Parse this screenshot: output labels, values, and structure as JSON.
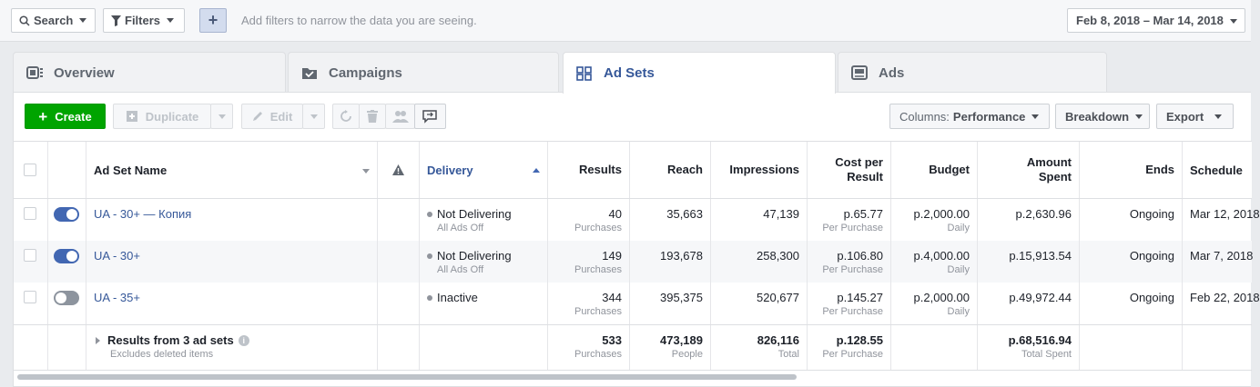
{
  "filterbar": {
    "search_label": "Search",
    "filters_label": "Filters",
    "add_label": "+",
    "hint": "Add filters to narrow the data you are seeing.",
    "date_range": "Feb 8, 2018 – Mar 14, 2018"
  },
  "tabs": [
    {
      "label": "Overview",
      "icon": "overview-icon"
    },
    {
      "label": "Campaigns",
      "icon": "folder-icon"
    },
    {
      "label": "Ad Sets",
      "icon": "grid-icon"
    },
    {
      "label": "Ads",
      "icon": "ad-icon"
    }
  ],
  "toolbar": {
    "create_label": "Create",
    "duplicate_label": "Duplicate",
    "edit_label": "Edit",
    "columns_label": "Columns:",
    "columns_value": "Performance",
    "breakdown_label": "Breakdown",
    "export_label": "Export"
  },
  "columns": {
    "name": "Ad Set Name",
    "delivery": "Delivery",
    "results": "Results",
    "reach": "Reach",
    "impressions": "Impressions",
    "cost_line1": "Cost per",
    "cost_line2": "Result",
    "budget": "Budget",
    "spent_line1": "Amount",
    "spent_line2": "Spent",
    "ends": "Ends",
    "schedule": "Schedule"
  },
  "rows": [
    {
      "on": true,
      "name": "UA - 30+ — Копия",
      "delivery": "Not Delivering",
      "delivery_sub": "All Ads Off",
      "results": "40",
      "results_sub": "Purchases",
      "reach": "35,663",
      "impressions": "47,139",
      "cost": "р.65.77",
      "cost_sub": "Per Purchase",
      "budget": "р.2,000.00",
      "budget_sub": "Daily",
      "spent": "р.2,630.96",
      "ends": "Ongoing",
      "schedule": "Mar 12, 2018"
    },
    {
      "on": true,
      "name": "UA - 30+",
      "delivery": "Not Delivering",
      "delivery_sub": "All Ads Off",
      "results": "149",
      "results_sub": "Purchases",
      "reach": "193,678",
      "impressions": "258,300",
      "cost": "р.106.80",
      "cost_sub": "Per Purchase",
      "budget": "р.4,000.00",
      "budget_sub": "Daily",
      "spent": "р.15,913.54",
      "ends": "Ongoing",
      "schedule": "Mar 7, 2018"
    },
    {
      "on": false,
      "name": "UA - 35+",
      "delivery": "Inactive",
      "delivery_sub": "",
      "results": "344",
      "results_sub": "Purchases",
      "reach": "395,375",
      "impressions": "520,677",
      "cost": "р.145.27",
      "cost_sub": "Per Purchase",
      "budget": "р.2,000.00",
      "budget_sub": "Daily",
      "spent": "р.49,972.44",
      "ends": "Ongoing",
      "schedule": "Feb 22, 2018"
    }
  ],
  "summary": {
    "title": "Results from 3 ad sets",
    "subtitle": "Excludes deleted items",
    "results": "533",
    "results_sub": "Purchases",
    "reach": "473,189",
    "reach_sub": "People",
    "impressions": "826,116",
    "impressions_sub": "Total",
    "cost": "р.128.55",
    "cost_sub": "Per Purchase",
    "spent": "р.68,516.94",
    "spent_sub": "Total Spent"
  },
  "colors": {
    "accent": "#365899",
    "create": "#00a400",
    "toggle_on": "#4267b2"
  }
}
